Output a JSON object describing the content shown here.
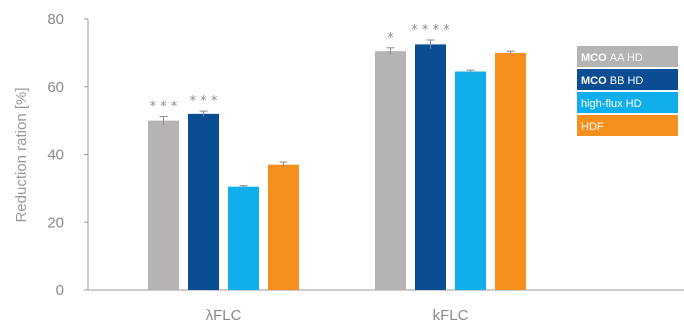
{
  "chart_data": {
    "type": "bar",
    "title": "",
    "xlabel": "",
    "ylabel": "Reduction ration [%]",
    "ylim": [
      0,
      80
    ],
    "yticks": [
      0,
      20,
      40,
      60,
      80
    ],
    "grid": false,
    "legend_position": "right",
    "categories": [
      "λFLC",
      "kFLC"
    ],
    "series": [
      {
        "name": "AA HD",
        "name_bold": "MCO",
        "color": "#b6b3b3",
        "values": [
          50,
          70.5
        ],
        "errors": [
          1.2,
          1.0
        ],
        "significance": [
          "* * *",
          "*"
        ]
      },
      {
        "name": "BB HD",
        "name_bold": "MCO",
        "color": "#0a4d93",
        "values": [
          52,
          72.5
        ],
        "errors": [
          0.8,
          1.3
        ],
        "significance": [
          "* * *",
          "* * * *"
        ]
      },
      {
        "name": "high-flux HD",
        "name_bold": "",
        "color": "#10aeea",
        "values": [
          30.5,
          64.5
        ],
        "errors": [
          0.3,
          0.4
        ],
        "significance": [
          "",
          ""
        ]
      },
      {
        "name": "HDF",
        "name_bold": "",
        "color": "#f5901e",
        "values": [
          37,
          70
        ],
        "errors": [
          0.8,
          0.5
        ],
        "significance": [
          "",
          ""
        ]
      }
    ]
  }
}
